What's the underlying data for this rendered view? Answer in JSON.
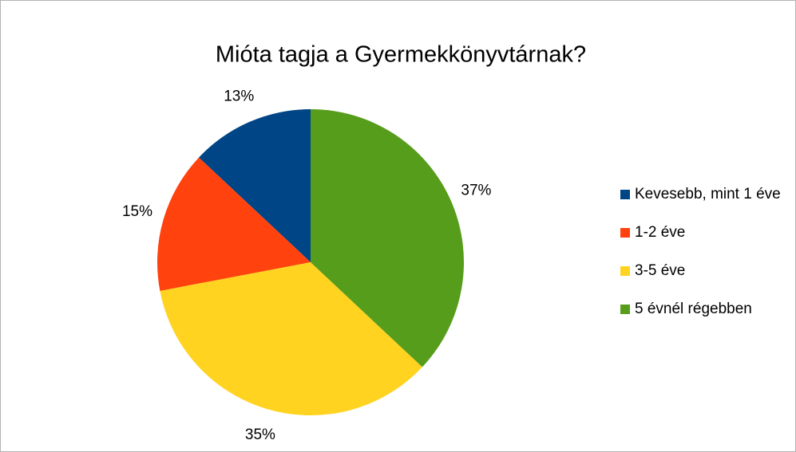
{
  "chart_data": {
    "type": "pie",
    "title": "Mióta tagja a Gyermekkönyvtárnak?",
    "categories": [
      "Kevesebb, mint 1 éve",
      "1-2 éve",
      "3-5 éve",
      "5 évnél régebben"
    ],
    "values": [
      13,
      15,
      35,
      37
    ],
    "value_labels": [
      "13%",
      "15%",
      "35%",
      "37%"
    ],
    "colors": [
      "#004586",
      "#ff420e",
      "#ffd320",
      "#579d1c"
    ],
    "legend": "right"
  }
}
